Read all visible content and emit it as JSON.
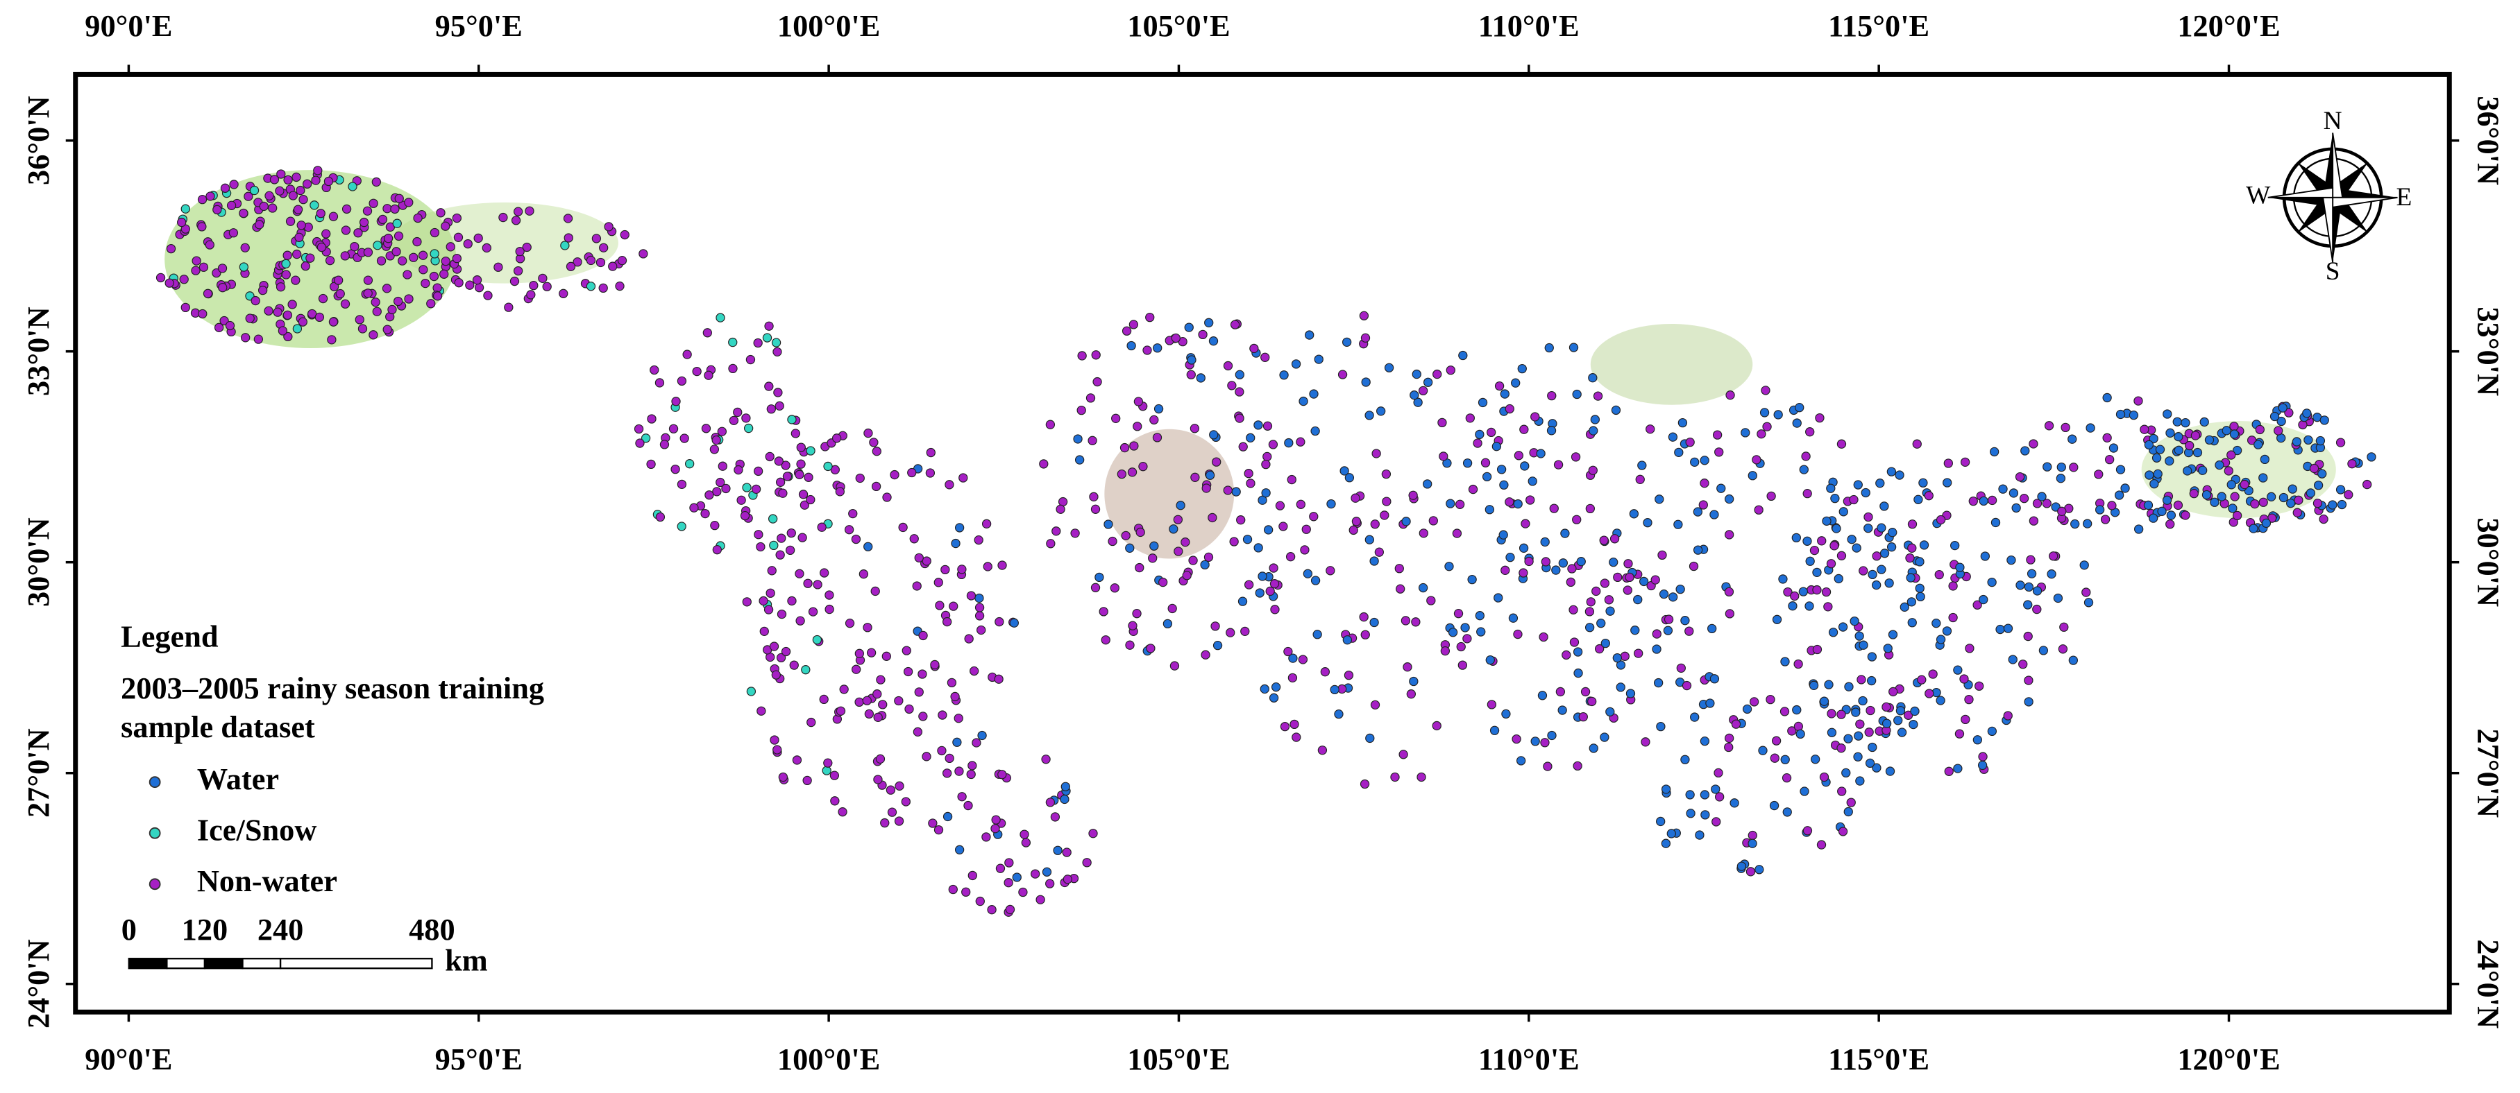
{
  "map": {
    "xlim": [
      89.24,
      123.15
    ],
    "ylim": [
      23.6,
      36.94
    ],
    "lon_ticks": [
      {
        "value": 90,
        "label": "90°0'E"
      },
      {
        "value": 95,
        "label": "95°0'E"
      },
      {
        "value": 100,
        "label": "100°0'E"
      },
      {
        "value": 105,
        "label": "105°0'E"
      },
      {
        "value": 110,
        "label": "110°0'E"
      },
      {
        "value": 115,
        "label": "115°0'E"
      },
      {
        "value": 120,
        "label": "120°0'E"
      }
    ],
    "lat_ticks": [
      {
        "value": 24,
        "label": "24°0'N"
      },
      {
        "value": 27,
        "label": "27°0'N"
      },
      {
        "value": 30,
        "label": "30°0'N"
      },
      {
        "value": 33,
        "label": "33°0'N"
      },
      {
        "value": 36,
        "label": "36°0'N"
      }
    ],
    "legend": {
      "heading": "Legend",
      "title": [
        "2003–2005 rainy season training",
        "sample dataset"
      ],
      "items": [
        {
          "name": "Water",
          "color": "#1f6fd6"
        },
        {
          "name": "Ice/Snow",
          "color": "#33d6c2"
        },
        {
          "name": "Non-water",
          "color": "#a61fc4"
        }
      ]
    },
    "scale_bar": {
      "ticks": [
        0,
        120,
        240,
        480
      ],
      "unit": "km"
    },
    "compass": {
      "N": "N",
      "E": "E",
      "S": "S",
      "W": "W"
    }
  }
}
